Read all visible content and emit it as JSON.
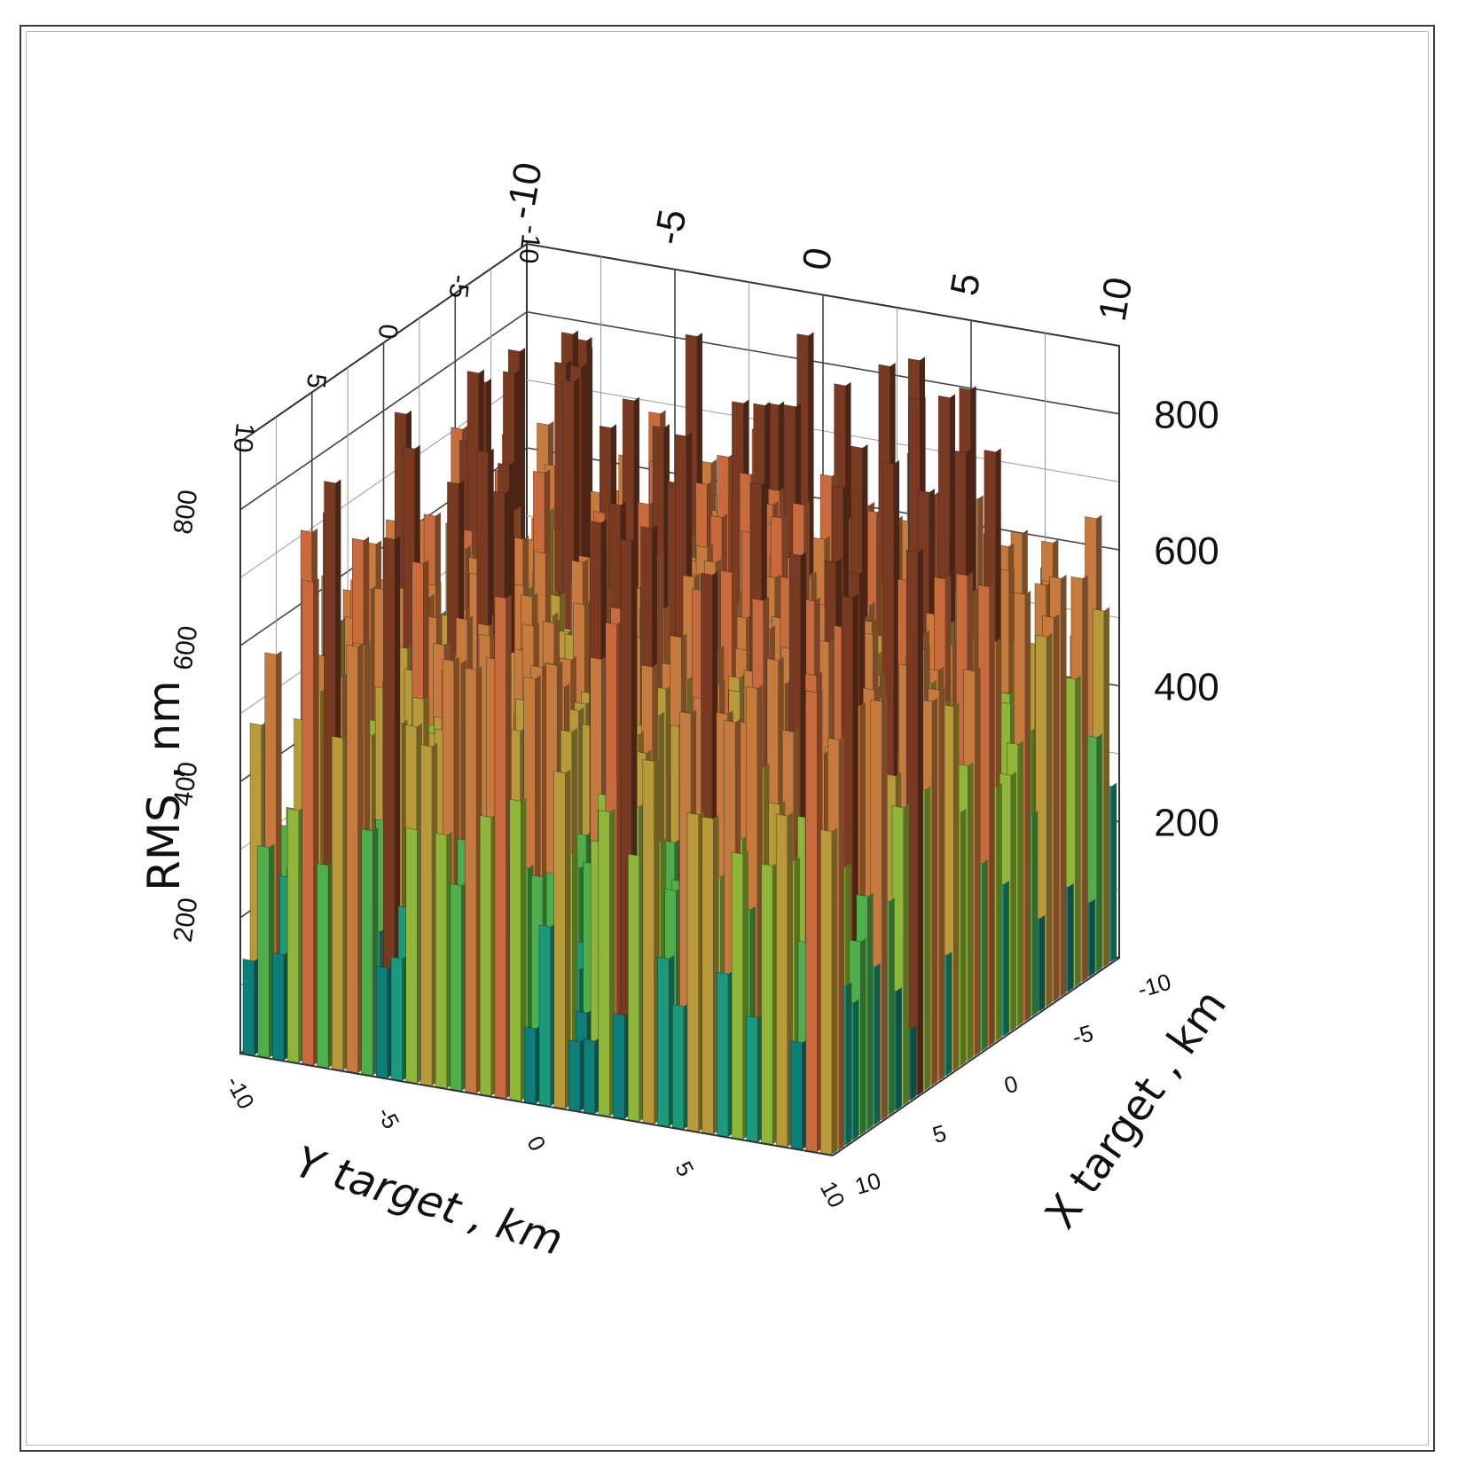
{
  "chart_data": {
    "type": "3d-bar",
    "xlabel": "X target , km",
    "ylabel": "Y target ,  km",
    "zlabel": "RMS , nm",
    "x_range": [
      -10,
      10
    ],
    "y_range": [
      -10,
      10
    ],
    "z_range": [
      0,
      900
    ],
    "x_ticks": [
      "-10",
      "-5",
      "0",
      "5",
      "10"
    ],
    "y_ticks": [
      "-10",
      "-5",
      "0",
      "5",
      "10"
    ],
    "z_ticks": [
      "200",
      "400",
      "600",
      "800"
    ],
    "grid": true,
    "grid_size": 40,
    "value_distribution": {
      "min": 80,
      "max": 880,
      "typical_low": 150,
      "typical_high": 650
    },
    "colormap": [
      "#0e7f78",
      "#1a9a7a",
      "#4fae4a",
      "#8fb638",
      "#b89a3a",
      "#c67a3e",
      "#c86a3c",
      "#7a3a22"
    ]
  }
}
